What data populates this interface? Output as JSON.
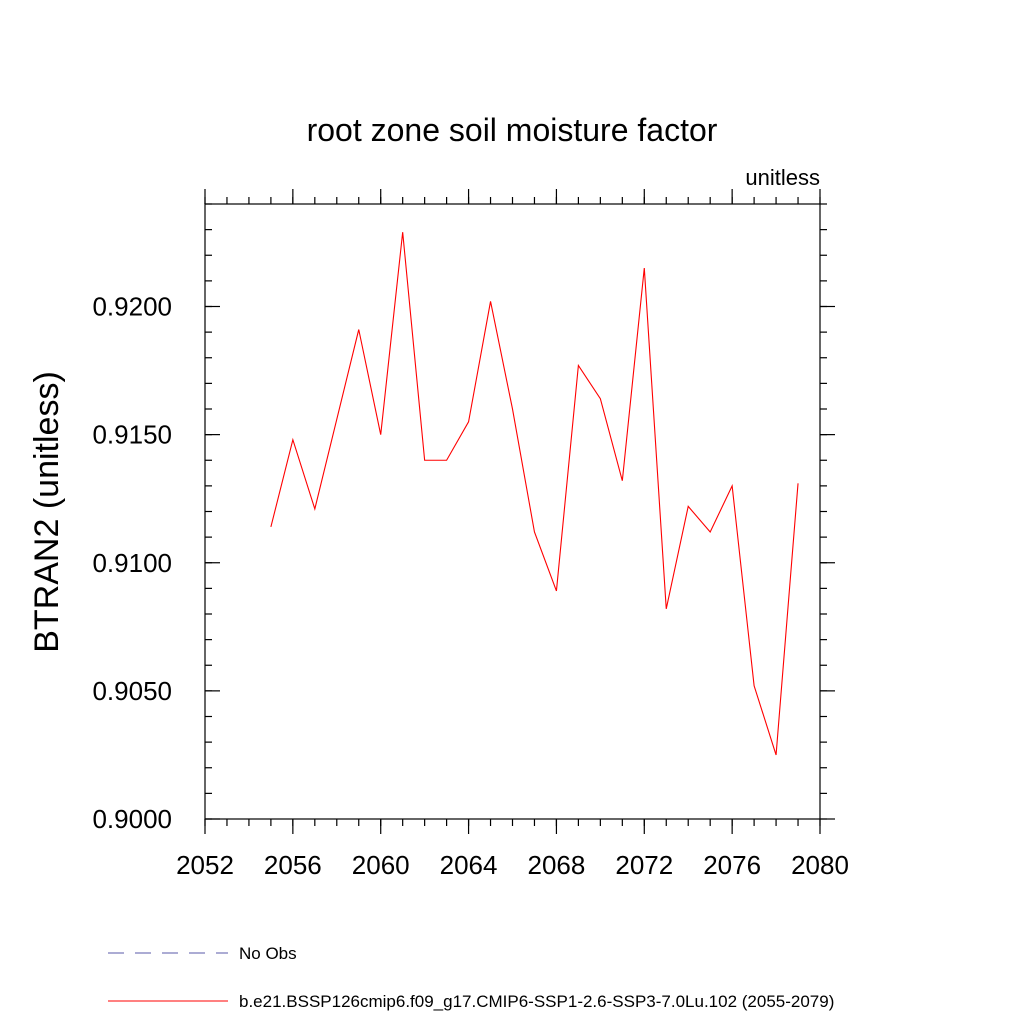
{
  "chart_data": {
    "type": "line",
    "title": "root zone soil moisture factor",
    "units_label": "unitless",
    "ylabel": "BTRAN2  (unitless)",
    "xlabel": "",
    "xlim": [
      2052,
      2080
    ],
    "ylim": [
      0.9,
      0.924
    ],
    "x_ticks": [
      2052,
      2056,
      2060,
      2064,
      2068,
      2072,
      2076,
      2080
    ],
    "x_tick_labels": [
      "2052",
      "2056",
      "2060",
      "2064",
      "2068",
      "2072",
      "2076",
      "2080"
    ],
    "y_ticks": [
      0.9,
      0.905,
      0.91,
      0.915,
      0.92
    ],
    "y_tick_labels": [
      "0.9000",
      "0.9050",
      "0.9100",
      "0.9150",
      "0.9200"
    ],
    "x_minor_step": 1,
    "y_minor_step": 0.001,
    "grid": false,
    "legend_position": "bottom",
    "series": [
      {
        "name": "b.e21.BSSP126cmip6.f09_g17.CMIP6-SSP1-2.6-SSP3-7.0Lu.102 (2055-2079)",
        "color": "#ff0000",
        "x": [
          2055,
          2056,
          2057,
          2058,
          2059,
          2060,
          2061,
          2062,
          2063,
          2064,
          2065,
          2066,
          2067,
          2068,
          2069,
          2070,
          2071,
          2072,
          2073,
          2074,
          2075,
          2076,
          2077,
          2078,
          2079
        ],
        "y": [
          0.9114,
          0.9148,
          0.9121,
          0.9156,
          0.9191,
          0.915,
          0.9229,
          0.914,
          0.914,
          0.9155,
          0.9202,
          0.916,
          0.9112,
          0.9089,
          0.9177,
          0.9164,
          0.9132,
          0.9215,
          0.9082,
          0.9122,
          0.9112,
          0.913,
          0.9052,
          0.9025,
          0.9131
        ]
      }
    ],
    "legend": [
      {
        "label": "No Obs",
        "style": "dashed",
        "color": "#5a5aa8"
      },
      {
        "label": "b.e21.BSSP126cmip6.f09_g17.CMIP6-SSP1-2.6-SSP3-7.0Lu.102 (2055-2079)",
        "style": "solid",
        "color": "#ff0000"
      }
    ]
  }
}
